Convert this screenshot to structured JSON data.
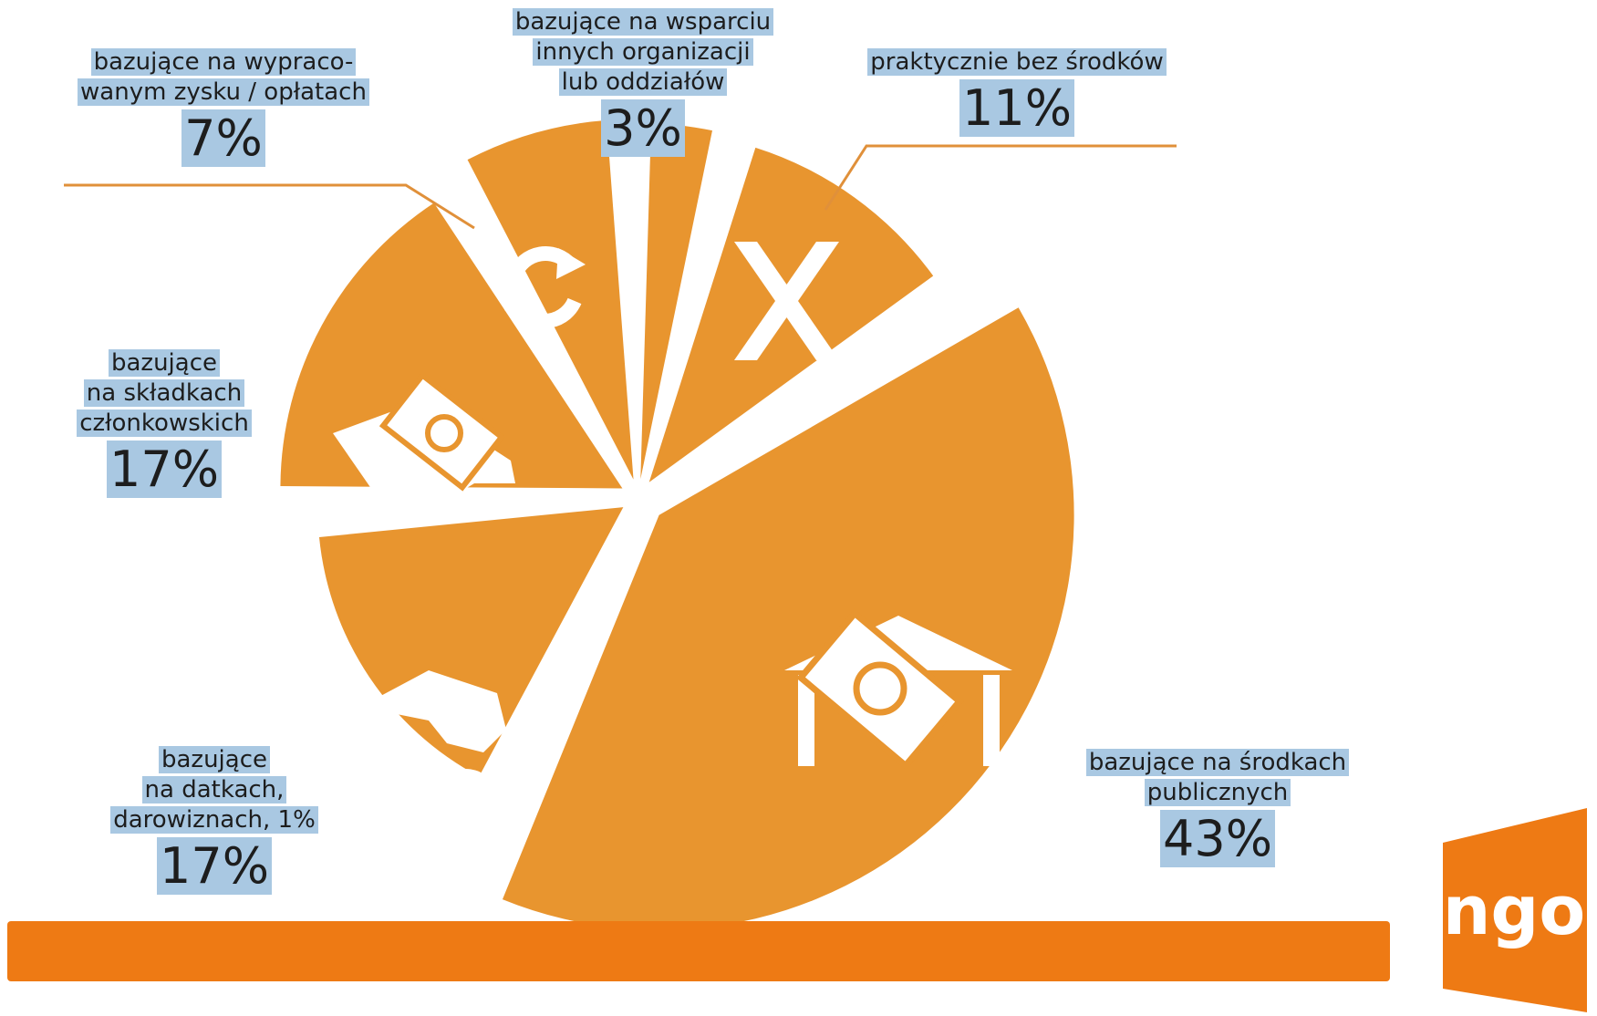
{
  "chart_data": {
    "type": "pie",
    "title": "",
    "slices": [
      {
        "label": "bazujące na środkach publicznych",
        "value": 43,
        "display": "43%",
        "icon": "money-building-icon"
      },
      {
        "label": "bazujące na datkach, darowiznach, 1%",
        "value": 17,
        "display": "17%",
        "icon": "coin-in-hand-icon"
      },
      {
        "label": "bazujące na składkach członkowskich",
        "value": 17,
        "display": "17%",
        "icon": "money-in-hand-icon"
      },
      {
        "label": "bazujące na wypraco-wanym zysku / opłatach",
        "value": 7,
        "display": "7%",
        "icon": "recycle-arrows-icon"
      },
      {
        "label": "bazujące na wsparciu innych organizacji lub oddziałów",
        "value": 3,
        "display": "3%",
        "icon": ""
      },
      {
        "label": "praktycznie bez środków",
        "value": 11,
        "display": "11%",
        "icon": "x-mark-icon"
      }
    ],
    "colors": {
      "slice": "#e8952f",
      "icon": "#ffffff",
      "label_highlight": "#a9c8e2",
      "leader_line": "#e0903a"
    }
  },
  "labels": {
    "publiczne": {
      "lines": [
        "bazujące na środkach",
        "publicznych"
      ],
      "pct": "43%"
    },
    "datki": {
      "lines": [
        "bazujące",
        "na datkach,",
        "darowiznach, 1%"
      ],
      "pct": "17%"
    },
    "skladki": {
      "lines": [
        "bazujące",
        "na składkach",
        "członkowskich"
      ],
      "pct": "17%"
    },
    "zysk": {
      "lines": [
        "bazujące na wypraco-",
        "wanym zysku / opłatach"
      ],
      "pct": "7%"
    },
    "wsparcie": {
      "lines": [
        "bazujące na wsparciu",
        "innych organizacji",
        "lub oddziałów"
      ],
      "pct": "3%"
    },
    "bez": {
      "lines": [
        "praktycznie bez środków"
      ],
      "pct": "11%"
    }
  },
  "footer": {
    "bar_color": "#ee7a14"
  },
  "logo": {
    "text": "ngo",
    "color": "#ee7a14"
  }
}
